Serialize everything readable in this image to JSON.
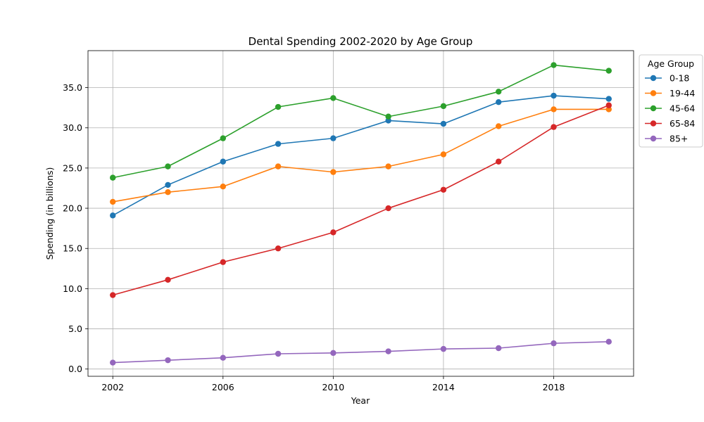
{
  "chart_data": {
    "type": "line",
    "title": "Dental Spending 2002-2020 by Age Group",
    "xlabel": "Year",
    "ylabel": "Spending (in billions)",
    "x": [
      2002,
      2004,
      2006,
      2008,
      2010,
      2012,
      2014,
      2016,
      2018,
      2020
    ],
    "xlim": [
      2001.1,
      2020.9
    ],
    "ylim": [
      -0.9,
      39.6
    ],
    "xticks": [
      2002,
      2006,
      2010,
      2014,
      2018
    ],
    "xtick_labels": [
      "2002",
      "2006",
      "2010",
      "2014",
      "2018"
    ],
    "yticks": [
      0,
      5,
      10,
      15,
      20,
      25,
      30,
      35
    ],
    "ytick_labels": [
      "0.0",
      "5.0",
      "10.0",
      "15.0",
      "20.0",
      "25.0",
      "30.0",
      "35.0"
    ],
    "grid": true,
    "legend": {
      "title": "Age Group",
      "placement": "outside-top-right"
    },
    "series": [
      {
        "name": "0-18",
        "color": "#1f77b4",
        "values": [
          19.1,
          22.9,
          25.8,
          28.0,
          28.7,
          30.9,
          30.5,
          33.2,
          34.0,
          33.6
        ]
      },
      {
        "name": "19-44",
        "color": "#ff7f0e",
        "values": [
          20.8,
          22.0,
          22.7,
          25.2,
          24.5,
          25.2,
          26.7,
          30.2,
          32.3,
          32.3
        ]
      },
      {
        "name": "45-64",
        "color": "#2ca02c",
        "values": [
          23.8,
          25.2,
          28.7,
          32.6,
          33.7,
          31.4,
          32.7,
          34.5,
          37.8,
          37.1
        ]
      },
      {
        "name": "65-84",
        "color": "#d62728",
        "values": [
          9.2,
          11.1,
          13.3,
          15.0,
          17.0,
          20.0,
          22.3,
          25.8,
          30.1,
          32.8
        ]
      },
      {
        "name": "85+",
        "color": "#9467bd",
        "values": [
          0.8,
          1.1,
          1.4,
          1.9,
          2.0,
          2.2,
          2.5,
          2.6,
          3.2,
          3.4
        ]
      }
    ]
  }
}
